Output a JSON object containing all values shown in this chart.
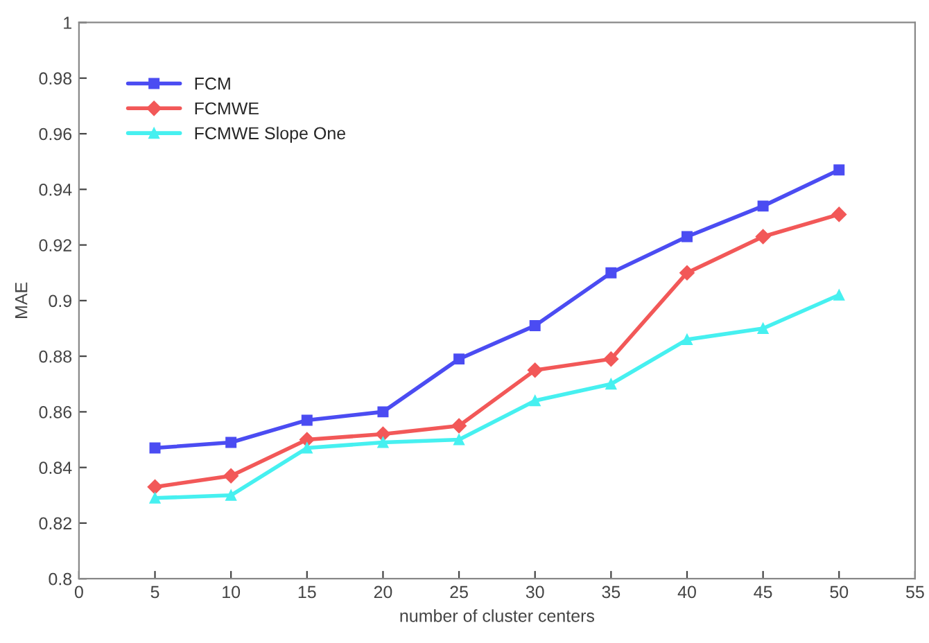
{
  "chart_data": {
    "type": "line",
    "xlabel": "number of cluster centers",
    "ylabel": "MAE",
    "x": [
      5,
      10,
      15,
      20,
      25,
      30,
      35,
      40,
      45,
      50
    ],
    "series": [
      {
        "name": "FCM",
        "color": "#4b4cf2",
        "marker": "square",
        "values": [
          0.847,
          0.849,
          0.857,
          0.86,
          0.879,
          0.891,
          0.91,
          0.923,
          0.934,
          0.947
        ]
      },
      {
        "name": "FCMWE",
        "color": "#f25858",
        "marker": "diamond",
        "values": [
          0.833,
          0.837,
          0.85,
          0.852,
          0.855,
          0.875,
          0.879,
          0.91,
          0.923,
          0.931
        ]
      },
      {
        "name": "FCMWE Slope One",
        "color": "#46f0f0",
        "marker": "triangle",
        "values": [
          0.829,
          0.83,
          0.847,
          0.849,
          0.85,
          0.864,
          0.87,
          0.886,
          0.89,
          0.902
        ]
      }
    ],
    "xlim": [
      0,
      55
    ],
    "xticks": [
      0,
      5,
      10,
      15,
      20,
      25,
      30,
      35,
      40,
      45,
      50,
      55
    ],
    "ylim": [
      0.8,
      1
    ],
    "yticks": [
      0.8,
      0.82,
      0.84,
      0.86,
      0.88,
      0.9,
      0.92,
      0.94,
      0.96,
      0.98,
      1
    ],
    "grid": false,
    "legend": "top left",
    "line_style": "solid"
  }
}
